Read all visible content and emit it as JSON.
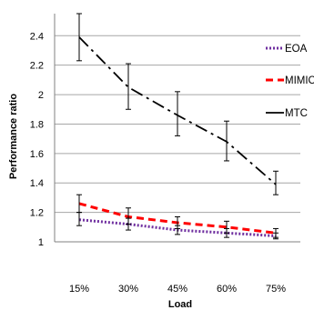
{
  "chart_data": {
    "type": "line",
    "xlabel": "Load",
    "ylabel": "Performance ratio",
    "categories": [
      "15%",
      "30%",
      "45%",
      "60%",
      "75%"
    ],
    "ylim": [
      1,
      2.55
    ],
    "yticks": [
      1,
      1.2,
      1.4,
      1.6,
      1.8,
      2,
      2.2,
      2.4
    ],
    "grid": "horizontal",
    "legend_position": "right",
    "series": [
      {
        "name": "EOA",
        "color": "#7030a0",
        "dash": "dotted",
        "values": [
          1.15,
          1.12,
          1.08,
          1.06,
          1.04
        ],
        "error_low": [
          1.11,
          1.08,
          1.05,
          1.03,
          1.02
        ],
        "error_high": [
          1.2,
          1.16,
          1.11,
          1.09,
          1.06
        ]
      },
      {
        "name": "MIMIC",
        "color": "#ff0000",
        "dash": "dashed",
        "values": [
          1.26,
          1.17,
          1.13,
          1.1,
          1.06
        ],
        "error_low": [
          1.2,
          1.12,
          1.09,
          1.06,
          1.03
        ],
        "error_high": [
          1.32,
          1.23,
          1.17,
          1.14,
          1.09
        ]
      },
      {
        "name": "MTC",
        "color": "#000000",
        "dash": "dashdot",
        "values": [
          2.39,
          2.05,
          1.86,
          1.68,
          1.39
        ],
        "error_low": [
          2.23,
          1.9,
          1.72,
          1.55,
          1.32
        ],
        "error_high": [
          2.55,
          2.21,
          2.02,
          1.82,
          1.48
        ]
      }
    ]
  }
}
